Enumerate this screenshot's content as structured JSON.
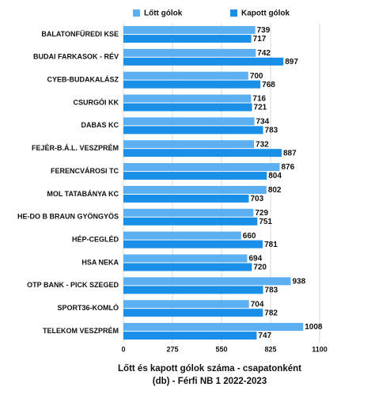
{
  "chart_data": {
    "type": "hbar",
    "title": "Lőtt és kapott gólok száma - csapatonként",
    "subtitle": "(db) - Férfi NB 1 2022-2023",
    "categories": [
      "BALATONFÜREDI KSE",
      "BUDAI FARKASOK - RÉV",
      "CYEB-BUDAKALÁSZ",
      "CSURGÓI KK",
      "DABAS KC",
      "FEJÉR-B.Á.L. VESZPRÉM",
      "FERENCVÁROSI TC",
      "MOL TATABÁNYA KC",
      "HE-DO B BRAUN GYÖNGYÖS",
      "HÉP-CEGLÉD",
      "HSA NEKA",
      "OTP BANK - PICK SZEGED",
      "SPORT36-KOMLÓ",
      "TELEKOM VESZPRÉM"
    ],
    "series": [
      {
        "name": "Lőtt gólok",
        "color": "#5cb0f2",
        "values": [
          739,
          742,
          700,
          716,
          734,
          732,
          876,
          802,
          729,
          660,
          694,
          938,
          704,
          1008
        ]
      },
      {
        "name": "Kapott gólok",
        "color": "#1a8fe8",
        "values": [
          717,
          897,
          768,
          721,
          783,
          887,
          804,
          703,
          751,
          781,
          720,
          783,
          782,
          747
        ]
      }
    ],
    "xlim": [
      0,
      1100
    ],
    "xticks": [
      0,
      275,
      550,
      825,
      1100
    ],
    "grid": true
  }
}
